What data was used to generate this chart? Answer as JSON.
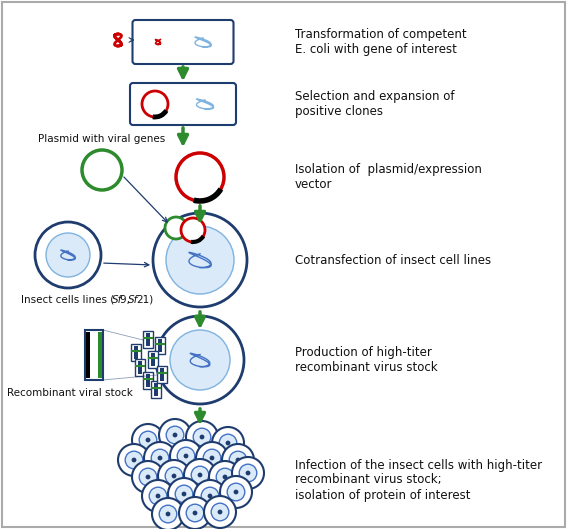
{
  "bg_color": "#ffffff",
  "border_color": "#aaaaaa",
  "blue_dark": "#1f3c6e",
  "blue_mid": "#4472c4",
  "blue_light": "#7fb3e0",
  "blue_fill": "#daeaf8",
  "green_arrow": "#2d8a2d",
  "green_circle": "#2d8a2d",
  "red_color": "#cc0000",
  "black": "#000000",
  "white": "#ffffff",
  "text_color": "#111111",
  "step1_text": "Transformation of competent\nE. coli with gene of interest",
  "step2_text": "Selection and expansion of\npositive clones",
  "step3_text": "Isolation of  plasmid/expression\nvector",
  "step4_text": "Cotransfection of insect cell lines",
  "step5_text": "Production of high-titer\nrecombinant virus stock",
  "step6_text": "Infection of the insect cells with high-titer\nrecombinant virus stock;\nisolation of protein of interest",
  "label_plasmid": "Plasmid with viral genes",
  "label_viral": "Recombinant viral stock",
  "font_size_text": 8.5,
  "font_size_label": 7.5
}
